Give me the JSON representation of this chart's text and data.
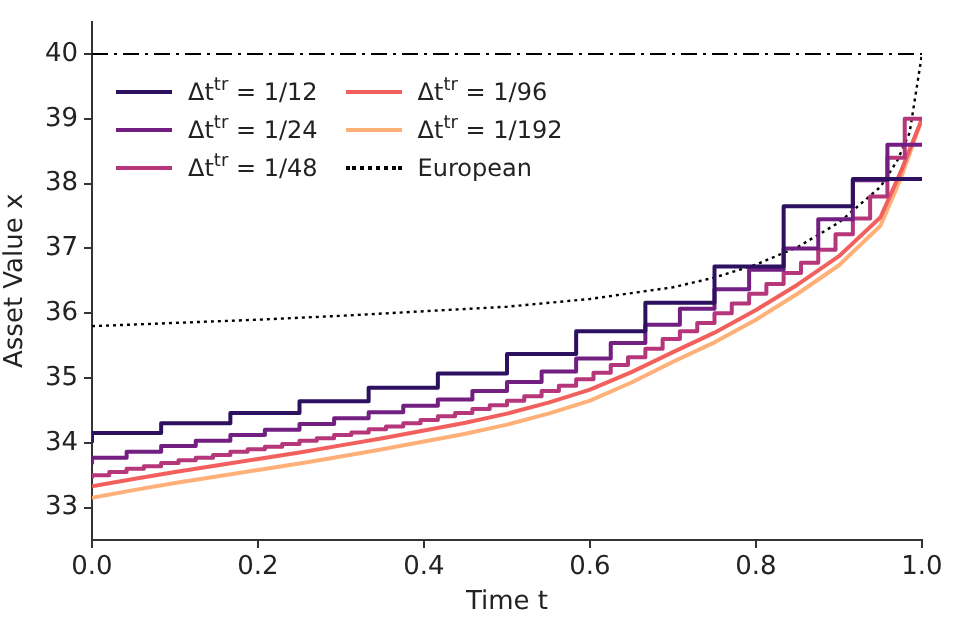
{
  "chart_data": {
    "type": "step",
    "xlabel": "Time t",
    "ylabel": "Asset Value x",
    "xlim": [
      0,
      1
    ],
    "xticks": [
      {
        "value": 0,
        "label": "0.0"
      },
      {
        "value": 0.2,
        "label": "0.2"
      },
      {
        "value": 0.4,
        "label": "0.4"
      },
      {
        "value": 0.6,
        "label": "0.6"
      },
      {
        "value": 0.8,
        "label": "0.8"
      },
      {
        "value": 1,
        "label": "1.0"
      }
    ],
    "ylim": [
      32.5,
      40.5
    ],
    "yticks": [
      33,
      34,
      35,
      36,
      37,
      38,
      39,
      40
    ],
    "grid": false,
    "legend": "top left",
    "marker": "none",
    "ref_lines": [
      {
        "axis": "y",
        "value": 40,
        "color": "#000000",
        "line_style": "dashdot"
      }
    ],
    "series": [
      {
        "name": "Δt$^{tr}$ = 1/12",
        "color": "#2d1160",
        "line_style": "solid",
        "x": [
          0,
          0.0833,
          0.1667,
          0.25,
          0.3333,
          0.4167,
          0.5,
          0.5833,
          0.6667,
          0.75,
          0.8333,
          0.9167,
          1
        ],
        "values": [
          34.0,
          34.15,
          34.3,
          34.46,
          34.64,
          34.85,
          35.07,
          35.37,
          35.72,
          36.16,
          36.72,
          37.65,
          38.07
        ]
      },
      {
        "name": "Δt$^{tr}$ = 1/24",
        "color": "#721f81",
        "line_style": "solid",
        "x": [
          0,
          0.0417,
          0.0833,
          0.125,
          0.1667,
          0.2083,
          0.25,
          0.2917,
          0.3333,
          0.375,
          0.4167,
          0.4583,
          0.5,
          0.5417,
          0.5833,
          0.625,
          0.6667,
          0.7083,
          0.75,
          0.7917,
          0.8333,
          0.875,
          0.9167,
          0.9583,
          1
        ],
        "values": [
          33.67,
          33.77,
          33.86,
          33.95,
          34.03,
          34.12,
          34.2,
          34.29,
          34.38,
          34.47,
          34.57,
          34.67,
          34.8,
          34.94,
          35.1,
          35.3,
          35.54,
          35.82,
          36.07,
          36.37,
          36.67,
          37.0,
          37.45,
          38.05,
          38.6
        ]
      },
      {
        "name": "Δt$^{tr}$ = 1/48",
        "color": "#b5367a",
        "line_style": "solid",
        "x": [
          0,
          0.0208,
          0.0417,
          0.0625,
          0.0833,
          0.1042,
          0.125,
          0.1458,
          0.1667,
          0.1875,
          0.2083,
          0.2292,
          0.25,
          0.2708,
          0.2917,
          0.3125,
          0.3333,
          0.3542,
          0.375,
          0.3958,
          0.4167,
          0.4375,
          0.4583,
          0.4792,
          0.5,
          0.5208,
          0.5417,
          0.5625,
          0.5833,
          0.6042,
          0.625,
          0.6458,
          0.6667,
          0.6875,
          0.7083,
          0.7292,
          0.75,
          0.7708,
          0.7917,
          0.8125,
          0.8333,
          0.8542,
          0.875,
          0.8958,
          0.9167,
          0.9375,
          0.9583,
          0.9792,
          1
        ],
        "values": [
          33.45,
          33.5,
          33.55,
          33.6,
          33.64,
          33.69,
          33.73,
          33.77,
          33.81,
          33.86,
          33.9,
          33.94,
          33.98,
          34.03,
          34.07,
          34.12,
          34.16,
          34.21,
          34.25,
          34.3,
          34.35,
          34.41,
          34.46,
          34.52,
          34.58,
          34.65,
          34.72,
          34.8,
          34.88,
          34.98,
          35.08,
          35.2,
          35.32,
          35.45,
          35.6,
          35.72,
          35.85,
          36.0,
          36.15,
          36.3,
          36.45,
          36.62,
          36.78,
          36.98,
          37.22,
          37.46,
          37.8,
          38.4,
          39.0
        ]
      },
      {
        "name": "Δt$^{tr}$ = 1/96",
        "color": "#f1605d",
        "type": "line",
        "line_style": "solid",
        "x": [
          0,
          0.05,
          0.1,
          0.15,
          0.2,
          0.25,
          0.3,
          0.35,
          0.4,
          0.45,
          0.5,
          0.55,
          0.6,
          0.65,
          0.7,
          0.75,
          0.8,
          0.85,
          0.9,
          0.95,
          0.975,
          1
        ],
        "values": [
          33.33,
          33.44,
          33.55,
          33.65,
          33.75,
          33.85,
          33.96,
          34.07,
          34.19,
          34.31,
          34.45,
          34.62,
          34.82,
          35.09,
          35.4,
          35.7,
          36.05,
          36.44,
          36.88,
          37.48,
          38.2,
          39.0
        ]
      },
      {
        "name": "Δt$^{tr}$ = 1/192",
        "color": "#feb078",
        "type": "line",
        "line_style": "solid",
        "x": [
          0,
          0.05,
          0.1,
          0.15,
          0.2,
          0.25,
          0.3,
          0.35,
          0.4,
          0.45,
          0.5,
          0.55,
          0.6,
          0.65,
          0.7,
          0.75,
          0.8,
          0.85,
          0.9,
          0.95,
          0.975,
          1
        ],
        "values": [
          33.15,
          33.27,
          33.38,
          33.48,
          33.58,
          33.68,
          33.79,
          33.9,
          34.02,
          34.14,
          34.28,
          34.45,
          34.65,
          34.93,
          35.25,
          35.55,
          35.9,
          36.3,
          36.74,
          37.35,
          38.1,
          39.0
        ]
      },
      {
        "name": "European",
        "color": "#000000",
        "type": "line",
        "line_style": "dotted",
        "x": [
          0,
          0.1,
          0.2,
          0.3,
          0.4,
          0.5,
          0.6,
          0.7,
          0.75,
          0.8,
          0.85,
          0.9,
          0.92,
          0.95,
          0.97,
          0.985,
          1
        ],
        "values": [
          35.8,
          35.85,
          35.9,
          35.96,
          36.03,
          36.1,
          36.22,
          36.4,
          36.55,
          36.75,
          37.02,
          37.4,
          37.62,
          37.95,
          38.35,
          38.78,
          40.0
        ]
      }
    ]
  }
}
